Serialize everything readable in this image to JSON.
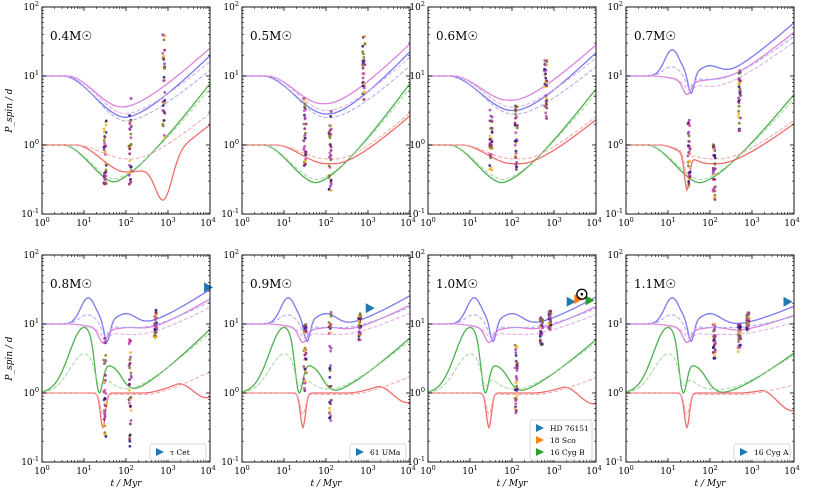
{
  "figure": {
    "x_axis_label": "t / Myr",
    "y_axis_label": "P_spin / d",
    "x_tick_labels": [
      "10^0",
      "10^1",
      "10^2",
      "10^3",
      "10^4"
    ],
    "y_tick_labels": [
      "10^-1",
      "10^0",
      "10^1",
      "10^2"
    ],
    "mass_unit": "M☉"
  },
  "series_colors": {
    "blue": "#6a6af0",
    "violet": "#d875d8",
    "green": "#3aa63a",
    "red": "#ee5c5c",
    "light_blue": "#a7a7ee",
    "light_violet": "#e2a6e2",
    "light_green": "#9fd59f",
    "light_red": "#f2a5a5"
  },
  "cluster_colors": [
    "#f0b429",
    "#c94aa7",
    "#8a1f6e",
    "#9b3fb8",
    "#1f1a7a",
    "#7a7a1c"
  ],
  "marker_colors": {
    "blue_star": "#1f77b4",
    "orange_star": "#ff7f0e",
    "green_star": "#2ca02c"
  },
  "chart_data": [
    {
      "type": "line",
      "title": "0.4M☉",
      "mass_label": "0.4",
      "xlim": [
        1,
        10000
      ],
      "ylim": [
        0.1,
        100
      ],
      "xscale": "log",
      "yscale": "log",
      "xlabel": "",
      "ylabel": "P_spin / d",
      "legend": []
    },
    {
      "type": "line",
      "title": "0.5M☉",
      "mass_label": "0.5",
      "xlim": [
        1,
        10000
      ],
      "ylim": [
        0.1,
        100
      ],
      "xscale": "log",
      "yscale": "log",
      "xlabel": "",
      "ylabel": "",
      "legend": []
    },
    {
      "type": "line",
      "title": "0.6M☉",
      "mass_label": "0.6",
      "xlim": [
        1,
        10000
      ],
      "ylim": [
        0.1,
        100
      ],
      "xscale": "log",
      "yscale": "log",
      "xlabel": "",
      "ylabel": "",
      "legend": []
    },
    {
      "type": "line",
      "title": "0.7M☉",
      "mass_label": "0.7",
      "xlim": [
        1,
        10000
      ],
      "ylim": [
        0.1,
        100
      ],
      "xscale": "log",
      "yscale": "log",
      "xlabel": "",
      "ylabel": "",
      "legend": []
    },
    {
      "type": "line",
      "title": "0.8M☉",
      "mass_label": "0.8",
      "xlim": [
        1,
        10000
      ],
      "ylim": [
        0.1,
        100
      ],
      "xscale": "log",
      "yscale": "log",
      "xlabel": "t / Myr",
      "ylabel": "P_spin / d",
      "legend": [
        {
          "label": "τ Cet",
          "color": "#1f77b4"
        }
      ],
      "stars": [
        {
          "t": 9000,
          "p": 34,
          "color": "#1f77b4"
        }
      ]
    },
    {
      "type": "line",
      "title": "0.9M☉",
      "mass_label": "0.9",
      "xlim": [
        1,
        10000
      ],
      "ylim": [
        0.1,
        100
      ],
      "xscale": "log",
      "yscale": "log",
      "xlabel": "t / Myr",
      "ylabel": "",
      "legend": [
        {
          "label": "61 UMa",
          "color": "#1f77b4"
        }
      ],
      "stars": [
        {
          "t": 1100,
          "p": 17,
          "color": "#1f77b4"
        }
      ]
    },
    {
      "type": "line",
      "title": "1.0M☉",
      "mass_label": "1.0",
      "xlim": [
        1,
        10000
      ],
      "ylim": [
        0.1,
        100
      ],
      "xscale": "log",
      "yscale": "log",
      "xlabel": "t / Myr",
      "ylabel": "",
      "legend": [
        {
          "label": "HD 76151",
          "color": "#1f77b4"
        },
        {
          "label": "18 Sco",
          "color": "#ff7f0e"
        },
        {
          "label": "16 Cyg B",
          "color": "#2ca02c"
        }
      ],
      "stars": [
        {
          "t": 2500,
          "p": 21,
          "color": "#1f77b4"
        },
        {
          "t": 3800,
          "p": 23,
          "color": "#ff7f0e"
        },
        {
          "t": 7000,
          "p": 22,
          "color": "#2ca02c"
        }
      ],
      "sun": {
        "t": 4600,
        "p": 27
      }
    },
    {
      "type": "line",
      "title": "1.1M☉",
      "mass_label": "1.1",
      "xlim": [
        1,
        10000
      ],
      "ylim": [
        0.1,
        100
      ],
      "xscale": "log",
      "yscale": "log",
      "xlabel": "t / Myr",
      "ylabel": "",
      "legend": [
        {
          "label": "16 Cyg A",
          "color": "#1f77b4"
        }
      ],
      "stars": [
        {
          "t": 7000,
          "p": 21,
          "color": "#1f77b4"
        }
      ]
    }
  ]
}
